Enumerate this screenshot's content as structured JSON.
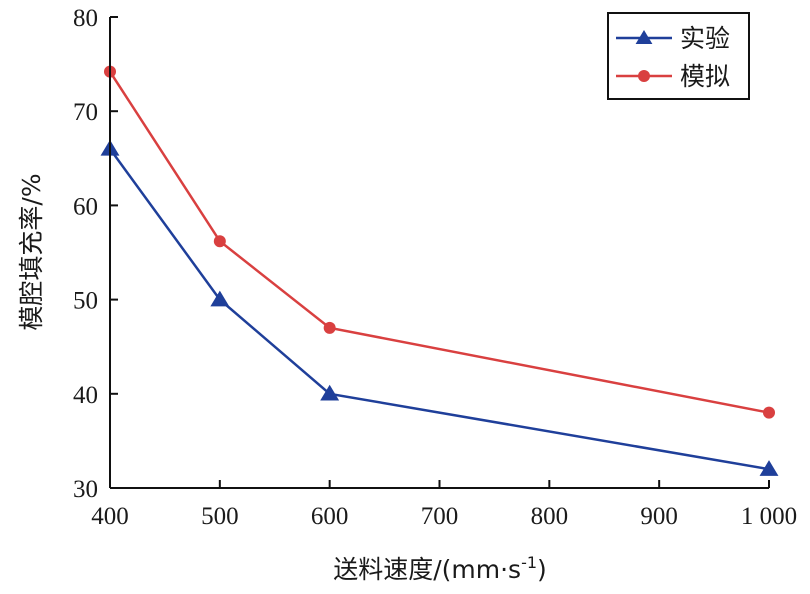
{
  "chart_data": {
    "type": "line",
    "title": "",
    "xlabel": "送料速度/(mm·s",
    "xlabel_sup": "-1",
    "xlabel_tail": ")",
    "ylabel": "模腔填充率/%",
    "x": [
      400,
      500,
      600,
      1000
    ],
    "xlim": [
      400,
      1000
    ],
    "ylim": [
      30,
      80
    ],
    "x_ticks": [
      400,
      500,
      600,
      700,
      800,
      900,
      1000
    ],
    "x_tick_labels": [
      "400",
      "500",
      "600",
      "700",
      "800",
      "900",
      "1 000"
    ],
    "y_ticks": [
      30,
      40,
      50,
      60,
      70,
      80
    ],
    "y_tick_labels": [
      "30",
      "40",
      "50",
      "60",
      "70",
      "80"
    ],
    "grid": false,
    "legend_position": "top-right",
    "series": [
      {
        "name": "实验",
        "values": [
          66,
          50,
          40,
          32
        ],
        "color": "#1f3f9a",
        "marker": "triangle"
      },
      {
        "name": "模拟",
        "values": [
          74.2,
          56.2,
          47,
          38
        ],
        "color": "#d94040",
        "marker": "circle"
      }
    ]
  }
}
